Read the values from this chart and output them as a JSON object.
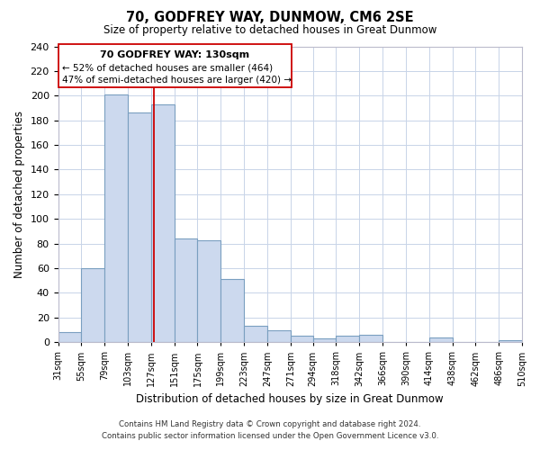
{
  "title": "70, GODFREY WAY, DUNMOW, CM6 2SE",
  "subtitle": "Size of property relative to detached houses in Great Dunmow",
  "xlabel": "Distribution of detached houses by size in Great Dunmow",
  "ylabel": "Number of detached properties",
  "bin_edges": [
    31,
    55,
    79,
    103,
    127,
    151,
    175,
    199,
    223,
    247,
    271,
    294,
    318,
    342,
    366,
    390,
    414,
    438,
    462,
    486,
    510
  ],
  "bar_heights": [
    8,
    60,
    201,
    186,
    193,
    84,
    83,
    51,
    13,
    10,
    5,
    3,
    5,
    6,
    0,
    0,
    4,
    0,
    0,
    2
  ],
  "bar_color": "#ccd9ee",
  "bar_edge_color": "#7a9fc0",
  "tick_labels": [
    "31sqm",
    "55sqm",
    "79sqm",
    "103sqm",
    "127sqm",
    "151sqm",
    "175sqm",
    "199sqm",
    "223sqm",
    "247sqm",
    "271sqm",
    "294sqm",
    "318sqm",
    "342sqm",
    "366sqm",
    "390sqm",
    "414sqm",
    "438sqm",
    "462sqm",
    "486sqm",
    "510sqm"
  ],
  "ylim": [
    0,
    240
  ],
  "yticks": [
    0,
    20,
    40,
    60,
    80,
    100,
    120,
    140,
    160,
    180,
    200,
    220,
    240
  ],
  "vline_x": 130,
  "vline_color": "#cc0000",
  "annotation_line1": "70 GODFREY WAY: 130sqm",
  "annotation_line2": "← 52% of detached houses are smaller (464)",
  "annotation_line3": "47% of semi-detached houses are larger (420) →",
  "footnote1": "Contains HM Land Registry data © Crown copyright and database right 2024.",
  "footnote2": "Contains public sector information licensed under the Open Government Licence v3.0.",
  "background_color": "#ffffff",
  "grid_color": "#c8d4e8"
}
